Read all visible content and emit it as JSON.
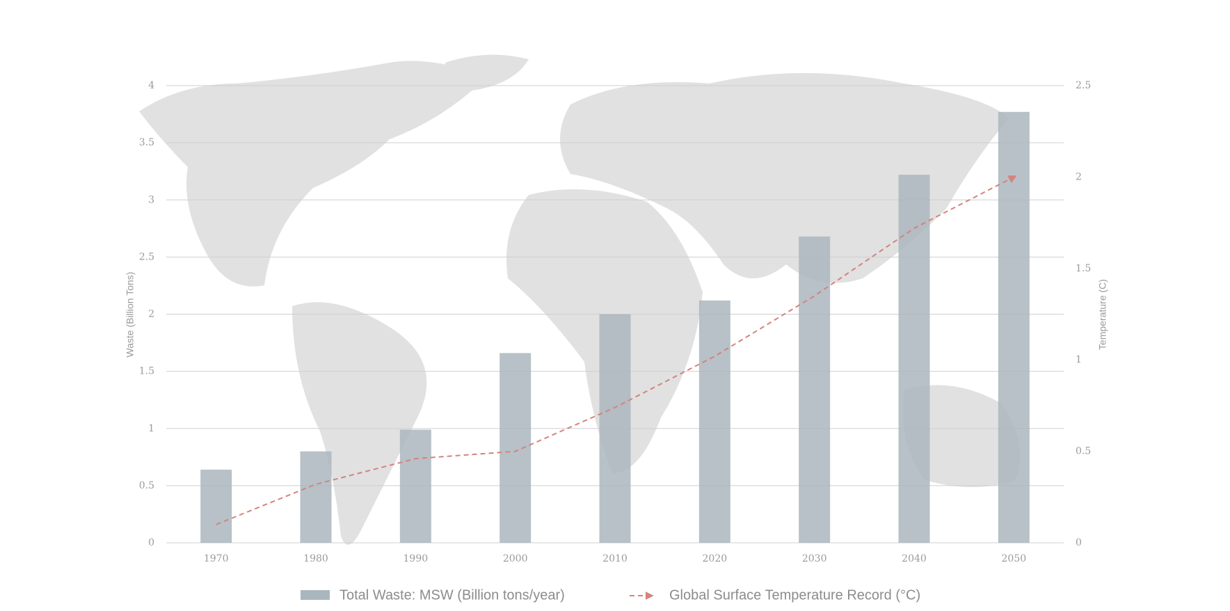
{
  "chart_data": {
    "type": "bar-line",
    "categories": [
      "1970",
      "1980",
      "1990",
      "2000",
      "2010",
      "2020",
      "2030",
      "2040",
      "2050"
    ],
    "series": [
      {
        "name": "Total Waste: MSW (Billion tons/year)",
        "type": "bar",
        "color": "#aab6bd",
        "values": [
          0.64,
          0.8,
          0.99,
          1.66,
          2.0,
          2.12,
          2.68,
          3.22,
          3.77
        ]
      },
      {
        "name": "Global Surface Temperature Record (°C)",
        "type": "line",
        "axis": "y2",
        "color": "#d4837c",
        "values": [
          0.1,
          0.32,
          0.46,
          0.5,
          0.74,
          1.02,
          1.35,
          1.72,
          2.0
        ]
      }
    ],
    "ylabel": "Waste (Billion Tons)",
    "y2label": "Temperature (C)",
    "ylim": [
      0,
      4
    ],
    "yticks": [
      0,
      0.5,
      1,
      1.5,
      2,
      2.5,
      3,
      3.5,
      4
    ],
    "y2lim": [
      0,
      2.5
    ],
    "y2ticks": [
      0,
      0.5,
      1,
      1.5,
      2,
      2.5
    ],
    "grid": true,
    "legend": "bottom"
  }
}
